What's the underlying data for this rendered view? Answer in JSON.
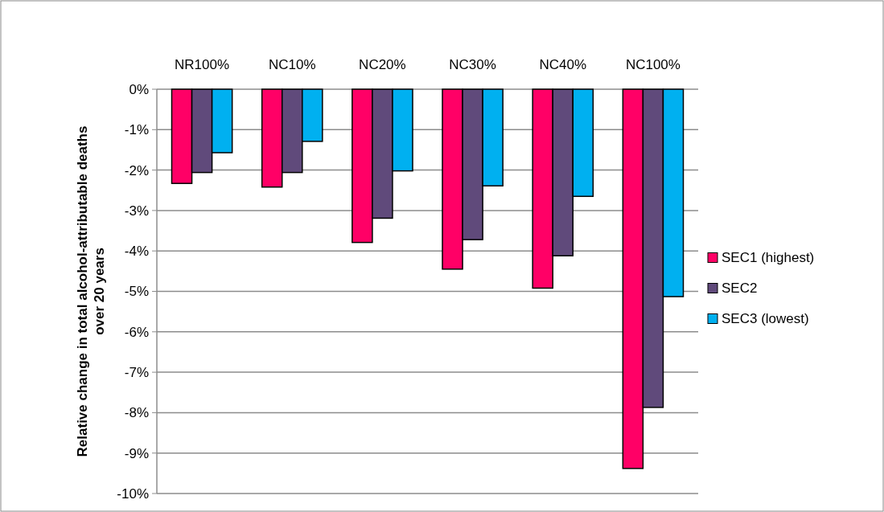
{
  "chart_data": {
    "type": "bar",
    "ylabel": "Relative change in total alcohol-attributable deaths over 20 years",
    "categories": [
      "NR100%",
      "NC10%",
      "NC20%",
      "NC30%",
      "NC40%",
      "NC100%"
    ],
    "series": [
      {
        "name": "SEC1 (highest)",
        "color": "#ff0066",
        "values": [
          -2.33,
          -2.42,
          -3.79,
          -4.45,
          -4.92,
          -9.38
        ]
      },
      {
        "name": "SEC2",
        "color": "#604a7b",
        "values": [
          -2.06,
          -2.06,
          -3.19,
          -3.72,
          -4.12,
          -7.87
        ]
      },
      {
        "name": "SEC3 (lowest)",
        "color": "#00b0f0",
        "values": [
          -1.57,
          -1.29,
          -2.02,
          -2.39,
          -2.65,
          -5.13
        ]
      }
    ],
    "ylim": [
      -10,
      0
    ],
    "yticks": [
      {
        "value": 0,
        "label": "0%"
      },
      {
        "value": -1,
        "label": "-1%"
      },
      {
        "value": -2,
        "label": "-2%"
      },
      {
        "value": -3,
        "label": "-3%"
      },
      {
        "value": -4,
        "label": "-4%"
      },
      {
        "value": -5,
        "label": "-5%"
      },
      {
        "value": -6,
        "label": "-6%"
      },
      {
        "value": -7,
        "label": "-7%"
      },
      {
        "value": -8,
        "label": "-8%"
      },
      {
        "value": -9,
        "label": "-9%"
      },
      {
        "value": -10,
        "label": "-10%"
      }
    ],
    "grid": "y",
    "legend": "right"
  }
}
